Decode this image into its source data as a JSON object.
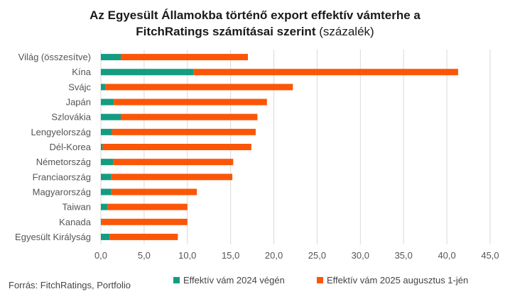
{
  "title": {
    "line1_bold": "Az Egyesült Államokba történő export effektív vámterhe a",
    "line2_bold": "FitchRatings számításai szerint",
    "line2_normal": "(százalék)"
  },
  "source": "Forrás: FitchRatings, Portfolio",
  "colors": {
    "series_2024": "#149c80",
    "series_2025": "#fb5607",
    "gridline": "#d9d9d9",
    "axis_text": "#555555"
  },
  "chart_data": {
    "type": "bar",
    "orientation": "horizontal",
    "stacked": true,
    "categories": [
      "Világ (összesítve)",
      "Kína",
      "Svájc",
      "Japán",
      "Szlovákia",
      "Lengyelország",
      "Dél-Korea",
      "Németország",
      "Franciaország",
      "Magyarország",
      "Taiwan",
      "Kanada",
      "Egyesült Királyság"
    ],
    "series": [
      {
        "name": "Effektív vám 2024 végén",
        "color": "#149c80",
        "values": [
          2.3,
          10.7,
          0.5,
          1.5,
          2.3,
          1.3,
          0.2,
          1.4,
          1.2,
          1.2,
          0.8,
          0.1,
          1.0
        ]
      },
      {
        "name": "Effektív vám 2025 augusztus 1-jén",
        "color": "#fb5607",
        "values": [
          14.7,
          30.6,
          21.7,
          17.7,
          15.8,
          16.6,
          17.2,
          13.9,
          14.0,
          9.9,
          9.2,
          9.9,
          7.9
        ]
      }
    ],
    "xlim": [
      0,
      45
    ],
    "xticks": [
      0,
      5,
      10,
      15,
      20,
      25,
      30,
      35,
      40,
      45
    ],
    "xtick_labels": [
      "0,0",
      "5,0",
      "10,0",
      "15,0",
      "20,0",
      "25,0",
      "30,0",
      "35,0",
      "40,0",
      "45,0"
    ],
    "grid": true,
    "legend_position": "bottom"
  }
}
